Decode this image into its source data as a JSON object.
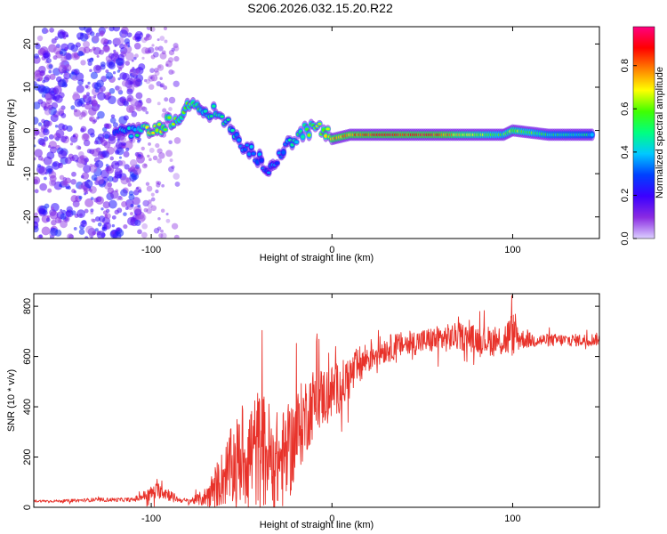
{
  "title": "S206.2026.032.15.20.R22",
  "chart_data": [
    {
      "type": "heatmap",
      "name": "spectrogram",
      "xlabel": "Height of straight line (km)",
      "ylabel": "Frequency (Hz)",
      "xlim": [
        -165,
        148
      ],
      "ylim": [
        -25,
        24
      ],
      "xticks": [
        -100,
        0,
        100
      ],
      "yticks": [
        -20,
        -10,
        0,
        10,
        20
      ],
      "colorbar": {
        "label": "Normalized spectral amplitude",
        "range": [
          0,
          0.98
        ],
        "ticks": [
          0.0,
          0.2,
          0.4,
          0.6,
          0.8
        ],
        "tick_labels": [
          "0.0",
          "0.2",
          "0.4",
          "0.6",
          "0.8"
        ],
        "colormap": [
          "#dcd0ff",
          "#8a2be2",
          "#3b00ff",
          "#0040ff",
          "#00c8ff",
          "#00ff80",
          "#40ff00",
          "#ffff00",
          "#ff8000",
          "#ff0000",
          "#ff0080"
        ]
      },
      "signal_track": [
        {
          "x": -120,
          "y": 0,
          "a": 0.35
        },
        {
          "x": -110,
          "y": 0,
          "a": 0.4
        },
        {
          "x": -100,
          "y": 0,
          "a": 0.7
        },
        {
          "x": -90,
          "y": 2,
          "a": 0.6
        },
        {
          "x": -82,
          "y": 4,
          "a": 0.55
        },
        {
          "x": -78,
          "y": 7,
          "a": 0.6
        },
        {
          "x": -70,
          "y": 3,
          "a": 0.45
        },
        {
          "x": -62,
          "y": 5,
          "a": 0.5
        },
        {
          "x": -55,
          "y": -1,
          "a": 0.4
        },
        {
          "x": -48,
          "y": -4,
          "a": 0.35
        },
        {
          "x": -40,
          "y": -7,
          "a": 0.35
        },
        {
          "x": -35,
          "y": -9,
          "a": 0.3
        },
        {
          "x": -28,
          "y": -6,
          "a": 0.35
        },
        {
          "x": -22,
          "y": -2,
          "a": 0.45
        },
        {
          "x": -15,
          "y": 0,
          "a": 0.55
        },
        {
          "x": -8,
          "y": 1,
          "a": 0.6
        },
        {
          "x": 0,
          "y": -2,
          "a": 0.75
        },
        {
          "x": 10,
          "y": -1,
          "a": 0.8
        },
        {
          "x": 30,
          "y": -1,
          "a": 0.9
        },
        {
          "x": 55,
          "y": -1,
          "a": 0.9
        },
        {
          "x": 70,
          "y": -1,
          "a": 0.7
        },
        {
          "x": 95,
          "y": -1,
          "a": 0.55
        },
        {
          "x": 100,
          "y": 0,
          "a": 0.65
        },
        {
          "x": 120,
          "y": -1,
          "a": 0.5
        },
        {
          "x": 145,
          "y": -1,
          "a": 0.45
        }
      ]
    },
    {
      "type": "line",
      "name": "snr",
      "xlabel": "Height of straight line (km)",
      "ylabel": "SNR (10 * v/v)",
      "xlim": [
        -165,
        148
      ],
      "ylim": [
        0,
        850
      ],
      "xticks": [
        -100,
        0,
        100
      ],
      "yticks": [
        0,
        200,
        400,
        600,
        800
      ],
      "color": "#e8322a",
      "x": [
        -165,
        -150,
        -130,
        -110,
        -100,
        -95,
        -90,
        -85,
        -80,
        -75,
        -70,
        -65,
        -60,
        -55,
        -50,
        -45,
        -40,
        -35,
        -30,
        -25,
        -20,
        -15,
        -10,
        -5,
        0,
        5,
        10,
        15,
        20,
        25,
        30,
        40,
        50,
        60,
        70,
        80,
        90,
        95,
        100,
        105,
        110,
        120,
        130,
        140,
        148
      ],
      "y": [
        25,
        25,
        30,
        30,
        55,
        70,
        50,
        30,
        25,
        30,
        40,
        80,
        120,
        170,
        200,
        220,
        230,
        210,
        180,
        200,
        280,
        360,
        420,
        440,
        460,
        480,
        520,
        560,
        600,
        620,
        630,
        650,
        660,
        670,
        680,
        670,
        660,
        665,
        690,
        670,
        665,
        665,
        665,
        665,
        670
      ],
      "noise": [
        5,
        5,
        8,
        8,
        30,
        35,
        25,
        10,
        10,
        20,
        40,
        80,
        120,
        160,
        200,
        220,
        250,
        220,
        200,
        200,
        180,
        160,
        140,
        120,
        110,
        100,
        90,
        80,
        70,
        60,
        55,
        50,
        50,
        55,
        55,
        55,
        60,
        70,
        90,
        40,
        30,
        25,
        25,
        25,
        25
      ]
    }
  ]
}
